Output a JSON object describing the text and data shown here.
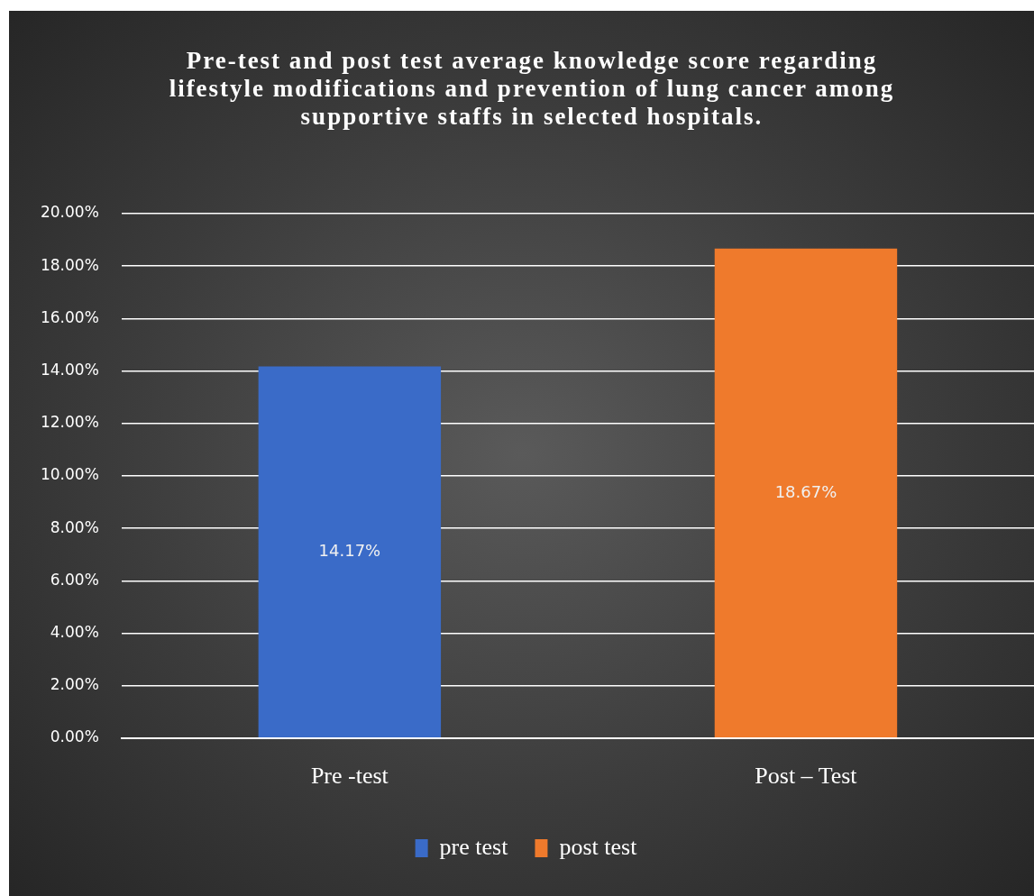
{
  "chart_data": {
    "type": "bar",
    "title": "Pre-test and post test average knowledge score regarding lifestyle modifications and prevention of lung cancer among supportive staffs in selected hospitals.",
    "categories": [
      "Pre -test",
      "Post – Test"
    ],
    "series": [
      {
        "name": "pre test",
        "color": "#3a6bc8",
        "values": [
          14.17,
          null
        ],
        "value_labels": [
          "14.17%",
          null
        ]
      },
      {
        "name": "post test",
        "color": "#ef7a2c",
        "values": [
          null,
          18.67
        ],
        "value_labels": [
          null,
          "18.67%"
        ]
      }
    ],
    "ylim": [
      0,
      20
    ],
    "yticks": [
      {
        "value": 0,
        "label": "0.00%"
      },
      {
        "value": 2,
        "label": "2.00%"
      },
      {
        "value": 4,
        "label": "4.00%"
      },
      {
        "value": 6,
        "label": "6.00%"
      },
      {
        "value": 8,
        "label": "8.00%"
      },
      {
        "value": 10,
        "label": "10.00%"
      },
      {
        "value": 12,
        "label": "12.00%"
      },
      {
        "value": 14,
        "label": "14.00%"
      },
      {
        "value": 16,
        "label": "16.00%"
      },
      {
        "value": 18,
        "label": "18.00%"
      },
      {
        "value": 20,
        "label": "20.00%"
      }
    ],
    "grid": "y",
    "legend": "bottom"
  }
}
